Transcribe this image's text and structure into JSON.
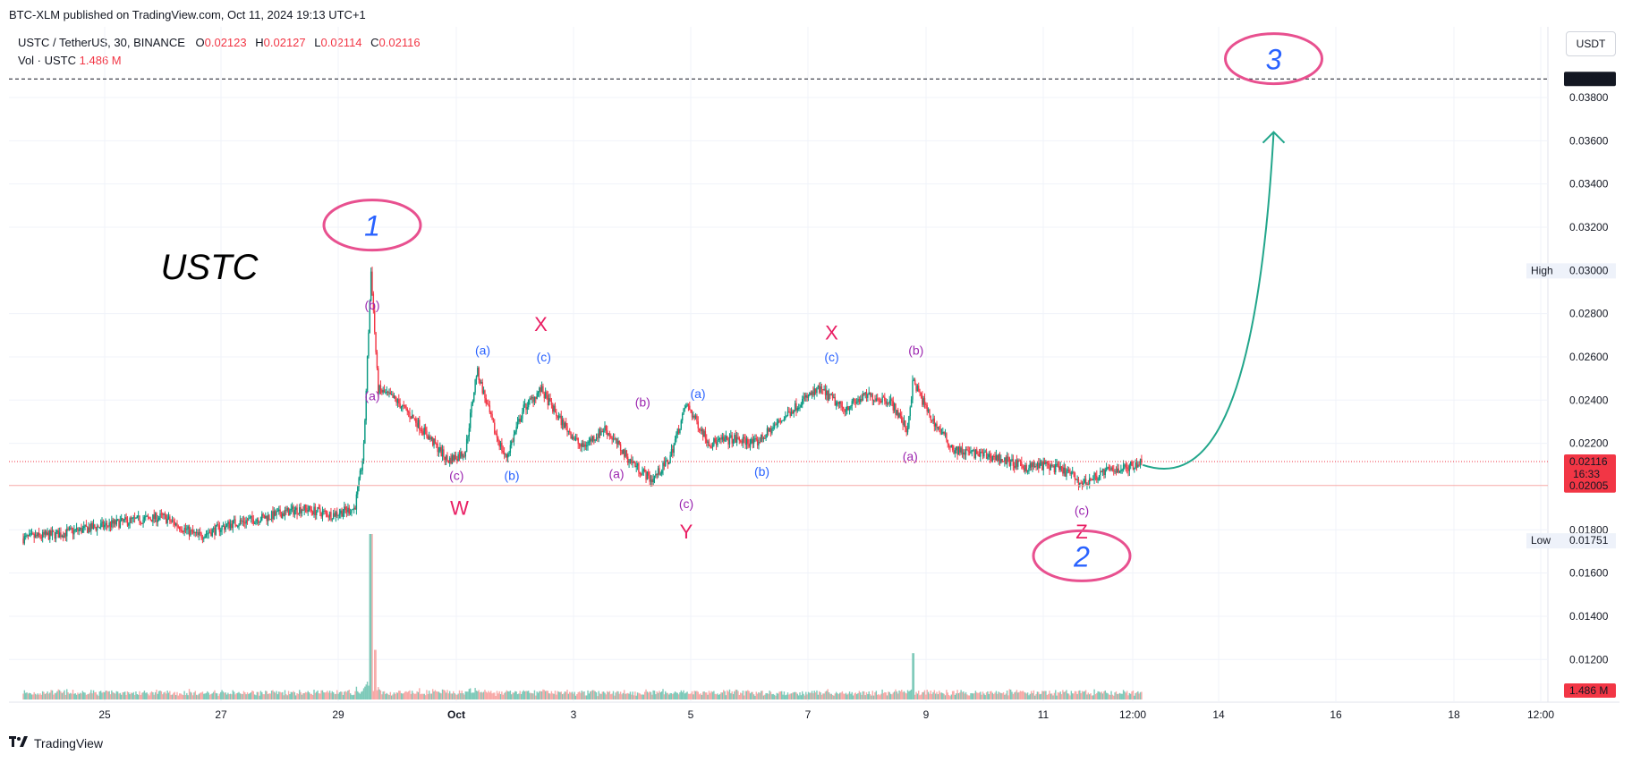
{
  "published": "BTC-XLM published on TradingView.com, Oct 11, 2024 19:13 UTC+1",
  "legend": {
    "symbol": "USTC / TetherUS, 30, BINANCE",
    "o_label": "O",
    "o": "0.02123",
    "h_label": "H",
    "h": "0.02127",
    "l_label": "L",
    "l": "0.02114",
    "c_label": "C",
    "c": "0.02116",
    "vol_label": "Vol · USTC",
    "vol": "1.486 M"
  },
  "currency": "USDT",
  "footer_brand": "TradingView",
  "colors": {
    "up": "#089981",
    "down": "#f23645",
    "blue_label": "#2962ff",
    "purple_label": "#9c27b0",
    "magenta_label": "#e91e63",
    "circle": "#e8508f",
    "arrow": "#22a68b"
  },
  "chart_data": {
    "type": "candlestick",
    "ylim": [
      0.0105,
      0.0405
    ],
    "price_ticks": [
      "0.03800",
      "0.03600",
      "0.03400",
      "0.03200",
      "0.02800",
      "0.02600",
      "0.02400",
      "0.02200",
      "0.01800",
      "0.01600",
      "0.01400",
      "0.01200"
    ],
    "price_tick_values": [
      0.038,
      0.036,
      0.034,
      0.032,
      0.028,
      0.026,
      0.024,
      0.022,
      0.018,
      0.016,
      0.014,
      0.012
    ],
    "x_axis_labels": [
      "25",
      "27",
      "29",
      "Oct",
      "3",
      "5",
      "7",
      "9",
      "11",
      "12:00",
      "14",
      "16",
      "18",
      "12:00"
    ],
    "annotations_on_axis": [
      {
        "label": "",
        "value": "0.03886",
        "price": 0.03886,
        "style": "dark"
      },
      {
        "label": "High",
        "value": "0.03000",
        "price": 0.03,
        "style": "light"
      },
      {
        "label": "",
        "value": "0.02116",
        "extra": "16:33",
        "price": 0.02116,
        "style": "red"
      },
      {
        "label": "",
        "value": "0.02005",
        "price": 0.02005,
        "style": "red"
      },
      {
        "label": "Low",
        "value": "0.01751",
        "price": 0.01751,
        "style": "light"
      },
      {
        "label": "",
        "value": "1.486 M",
        "style": "red_vol"
      }
    ],
    "price_path": [
      {
        "d": 23.6,
        "p": 0.0176
      },
      {
        "d": 24.2,
        "p": 0.0178
      },
      {
        "d": 24.8,
        "p": 0.0181
      },
      {
        "d": 25.4,
        "p": 0.0184
      },
      {
        "d": 26.0,
        "p": 0.0186
      },
      {
        "d": 26.6,
        "p": 0.0177
      },
      {
        "d": 27.2,
        "p": 0.0183
      },
      {
        "d": 27.8,
        "p": 0.0186
      },
      {
        "d": 28.4,
        "p": 0.019
      },
      {
        "d": 28.9,
        "p": 0.0187
      },
      {
        "d": 29.3,
        "p": 0.019
      },
      {
        "d": 29.45,
        "p": 0.0215
      },
      {
        "d": 29.58,
        "p": 0.03
      },
      {
        "d": 29.7,
        "p": 0.0245
      },
      {
        "d": 30.0,
        "p": 0.024
      },
      {
        "d": 30.3,
        "p": 0.0232
      },
      {
        "d": 30.6,
        "p": 0.0222
      },
      {
        "d": 30.9,
        "p": 0.0212
      },
      {
        "d": 31.2,
        "p": 0.0216
      },
      {
        "d": 31.4,
        "p": 0.0254
      },
      {
        "d": 31.7,
        "p": 0.0226
      },
      {
        "d": 31.9,
        "p": 0.0213
      },
      {
        "d": 32.2,
        "p": 0.0236
      },
      {
        "d": 32.5,
        "p": 0.0245
      },
      {
        "d": 32.8,
        "p": 0.0232
      },
      {
        "d": 33.2,
        "p": 0.0218
      },
      {
        "d": 33.6,
        "p": 0.0227
      },
      {
        "d": 34.0,
        "p": 0.0213
      },
      {
        "d": 34.4,
        "p": 0.0203
      },
      {
        "d": 34.7,
        "p": 0.0212
      },
      {
        "d": 35.0,
        "p": 0.0238
      },
      {
        "d": 35.4,
        "p": 0.022
      },
      {
        "d": 35.8,
        "p": 0.0222
      },
      {
        "d": 36.2,
        "p": 0.022
      },
      {
        "d": 36.6,
        "p": 0.023
      },
      {
        "d": 37.0,
        "p": 0.024
      },
      {
        "d": 37.3,
        "p": 0.0245
      },
      {
        "d": 37.7,
        "p": 0.0236
      },
      {
        "d": 38.1,
        "p": 0.0242
      },
      {
        "d": 38.5,
        "p": 0.024
      },
      {
        "d": 38.8,
        "p": 0.0226
      },
      {
        "d": 38.9,
        "p": 0.0249
      },
      {
        "d": 39.2,
        "p": 0.0232
      },
      {
        "d": 39.6,
        "p": 0.0217
      },
      {
        "d": 40.0,
        "p": 0.0215
      },
      {
        "d": 40.4,
        "p": 0.0213
      },
      {
        "d": 40.8,
        "p": 0.0209
      },
      {
        "d": 41.2,
        "p": 0.021
      },
      {
        "d": 41.6,
        "p": 0.0206
      },
      {
        "d": 41.8,
        "p": 0.0201
      },
      {
        "d": 42.2,
        "p": 0.0207
      },
      {
        "d": 42.6,
        "p": 0.0209
      },
      {
        "d": 42.85,
        "p": 0.0212
      }
    ],
    "volume_spikes": [
      {
        "d": 29.58,
        "v": 1.0
      },
      {
        "d": 29.65,
        "v": 0.3
      },
      {
        "d": 38.9,
        "v": 0.28
      }
    ],
    "wave_labels": [
      {
        "text": "(b)",
        "d": 29.6,
        "price": 0.0282,
        "color": "purple"
      },
      {
        "text": "(a)",
        "d": 29.6,
        "price": 0.024,
        "color": "purple"
      },
      {
        "text": "(a)",
        "d": 31.5,
        "price": 0.0261,
        "color": "blue"
      },
      {
        "text": "(c)",
        "d": 32.55,
        "price": 0.0258,
        "color": "blue"
      },
      {
        "text": "(c)",
        "d": 31.05,
        "price": 0.0203,
        "color": "purple"
      },
      {
        "text": "(b)",
        "d": 32.0,
        "price": 0.0203,
        "color": "blue"
      },
      {
        "text": "(a)",
        "d": 33.8,
        "price": 0.0204,
        "color": "purple"
      },
      {
        "text": "(b)",
        "d": 34.25,
        "price": 0.0237,
        "color": "purple"
      },
      {
        "text": "(a)",
        "d": 35.2,
        "price": 0.0241,
        "color": "blue"
      },
      {
        "text": "(b)",
        "d": 36.3,
        "price": 0.0205,
        "color": "blue"
      },
      {
        "text": "(c)",
        "d": 35.0,
        "price": 0.019,
        "color": "purple"
      },
      {
        "text": "(c)",
        "d": 37.5,
        "price": 0.0258,
        "color": "blue"
      },
      {
        "text": "(b)",
        "d": 38.95,
        "price": 0.0261,
        "color": "purple"
      },
      {
        "text": "(a)",
        "d": 38.85,
        "price": 0.0212,
        "color": "purple"
      },
      {
        "text": "(c)",
        "d": 41.8,
        "price": 0.0187,
        "color": "purple"
      },
      {
        "text": "W",
        "d": 31.1,
        "price": 0.0187,
        "color": "magenta"
      },
      {
        "text": "X",
        "d": 32.5,
        "price": 0.0272,
        "color": "magenta"
      },
      {
        "text": "Y",
        "d": 35.0,
        "price": 0.0176,
        "color": "magenta"
      },
      {
        "text": "X",
        "d": 37.5,
        "price": 0.0268,
        "color": "magenta"
      },
      {
        "text": "Z",
        "d": 41.8,
        "price": 0.0176,
        "color": "magenta"
      }
    ],
    "big_labels": [
      {
        "text": "USTC",
        "d": 26.8,
        "price": 0.0296,
        "color": "#000000"
      },
      {
        "text": "1",
        "d": 29.6,
        "price": 0.0316,
        "color": "#2962ff"
      },
      {
        "text": "2",
        "d": 41.8,
        "price": 0.0163,
        "color": "#2962ff"
      },
      {
        "text": "3",
        "d": 45.1,
        "price": 0.0393,
        "color": "#2962ff"
      }
    ]
  }
}
